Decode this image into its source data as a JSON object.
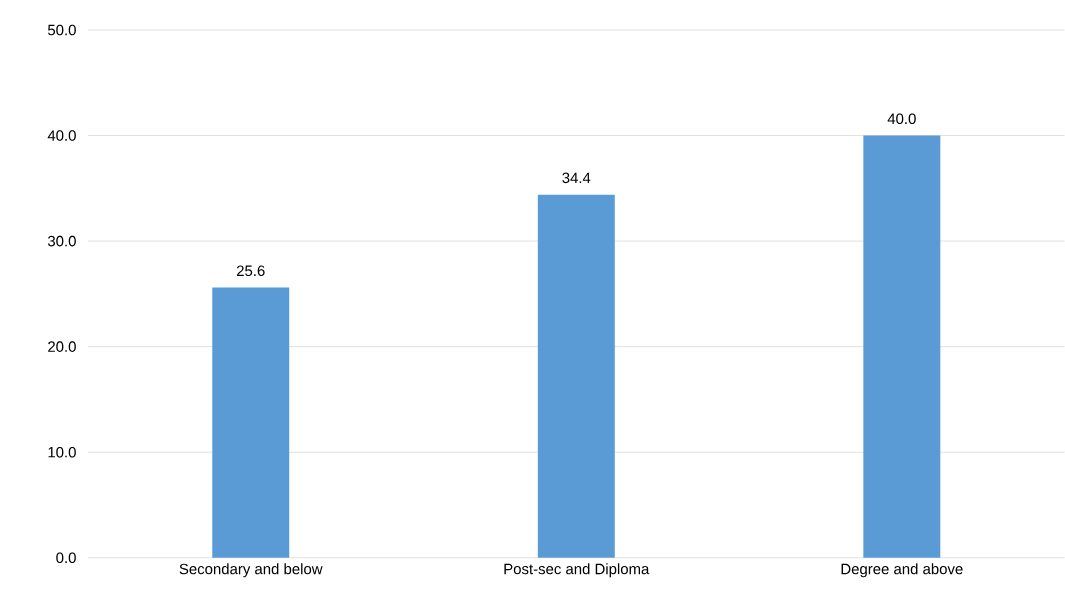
{
  "chart_data": {
    "type": "bar",
    "categories": [
      "Secondary and below",
      "Post-sec and Diploma",
      "Degree and above"
    ],
    "values": [
      25.6,
      34.4,
      40.0
    ],
    "value_labels": [
      "25.6",
      "34.4",
      "40.0"
    ],
    "color": "#5b9bd5",
    "ylim": [
      0,
      50
    ],
    "yticks": [
      {
        "value": 0,
        "label": "0.0"
      },
      {
        "value": 10,
        "label": "10.0"
      },
      {
        "value": 20,
        "label": "20.0"
      },
      {
        "value": 30,
        "label": "30.0"
      },
      {
        "value": 40,
        "label": "40.0"
      },
      {
        "value": 50,
        "label": "50.0"
      }
    ],
    "grid": "y"
  }
}
